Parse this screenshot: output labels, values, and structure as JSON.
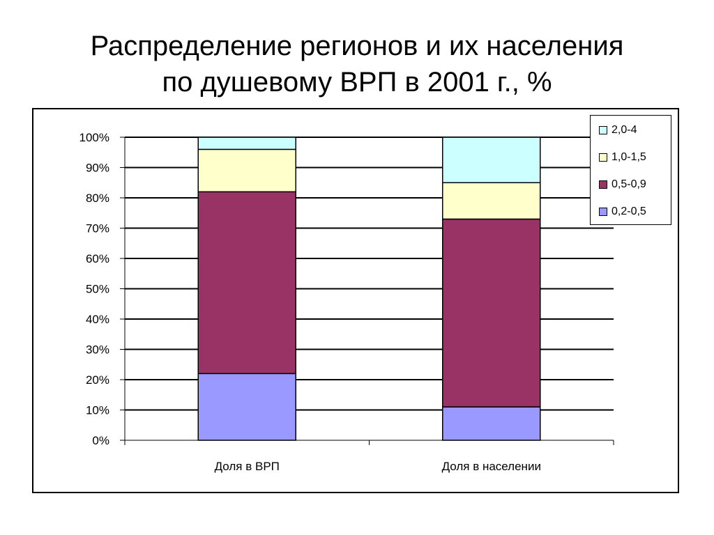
{
  "title": {
    "line1": "Распределение регионов и их населения",
    "line2": "по душевому ВРП в 2001 г., %"
  },
  "chart_data": {
    "type": "bar",
    "stacked": true,
    "categories": [
      "Доля в ВРП",
      "Доля в населении"
    ],
    "series": [
      {
        "name": "0,2-0,5",
        "values": [
          22,
          11
        ],
        "color": "#9999FF"
      },
      {
        "name": "0,5-0,9",
        "values": [
          60,
          62
        ],
        "color": "#993366"
      },
      {
        "name": "1,0-1,5",
        "values": [
          14,
          12
        ],
        "color": "#FFFFCC"
      },
      {
        "name": "2,0-4",
        "values": [
          4,
          15
        ],
        "color": "#CCFFFF"
      }
    ],
    "ylim": [
      0,
      100
    ],
    "yticks": [
      "0%",
      "10%",
      "20%",
      "30%",
      "40%",
      "50%",
      "60%",
      "70%",
      "80%",
      "90%",
      "100%"
    ],
    "grid": true,
    "legend_position": "top-right",
    "legend_order": [
      "2,0-4",
      "1,0-1,5",
      "0,5-0,9",
      "0,2-0,5"
    ]
  }
}
